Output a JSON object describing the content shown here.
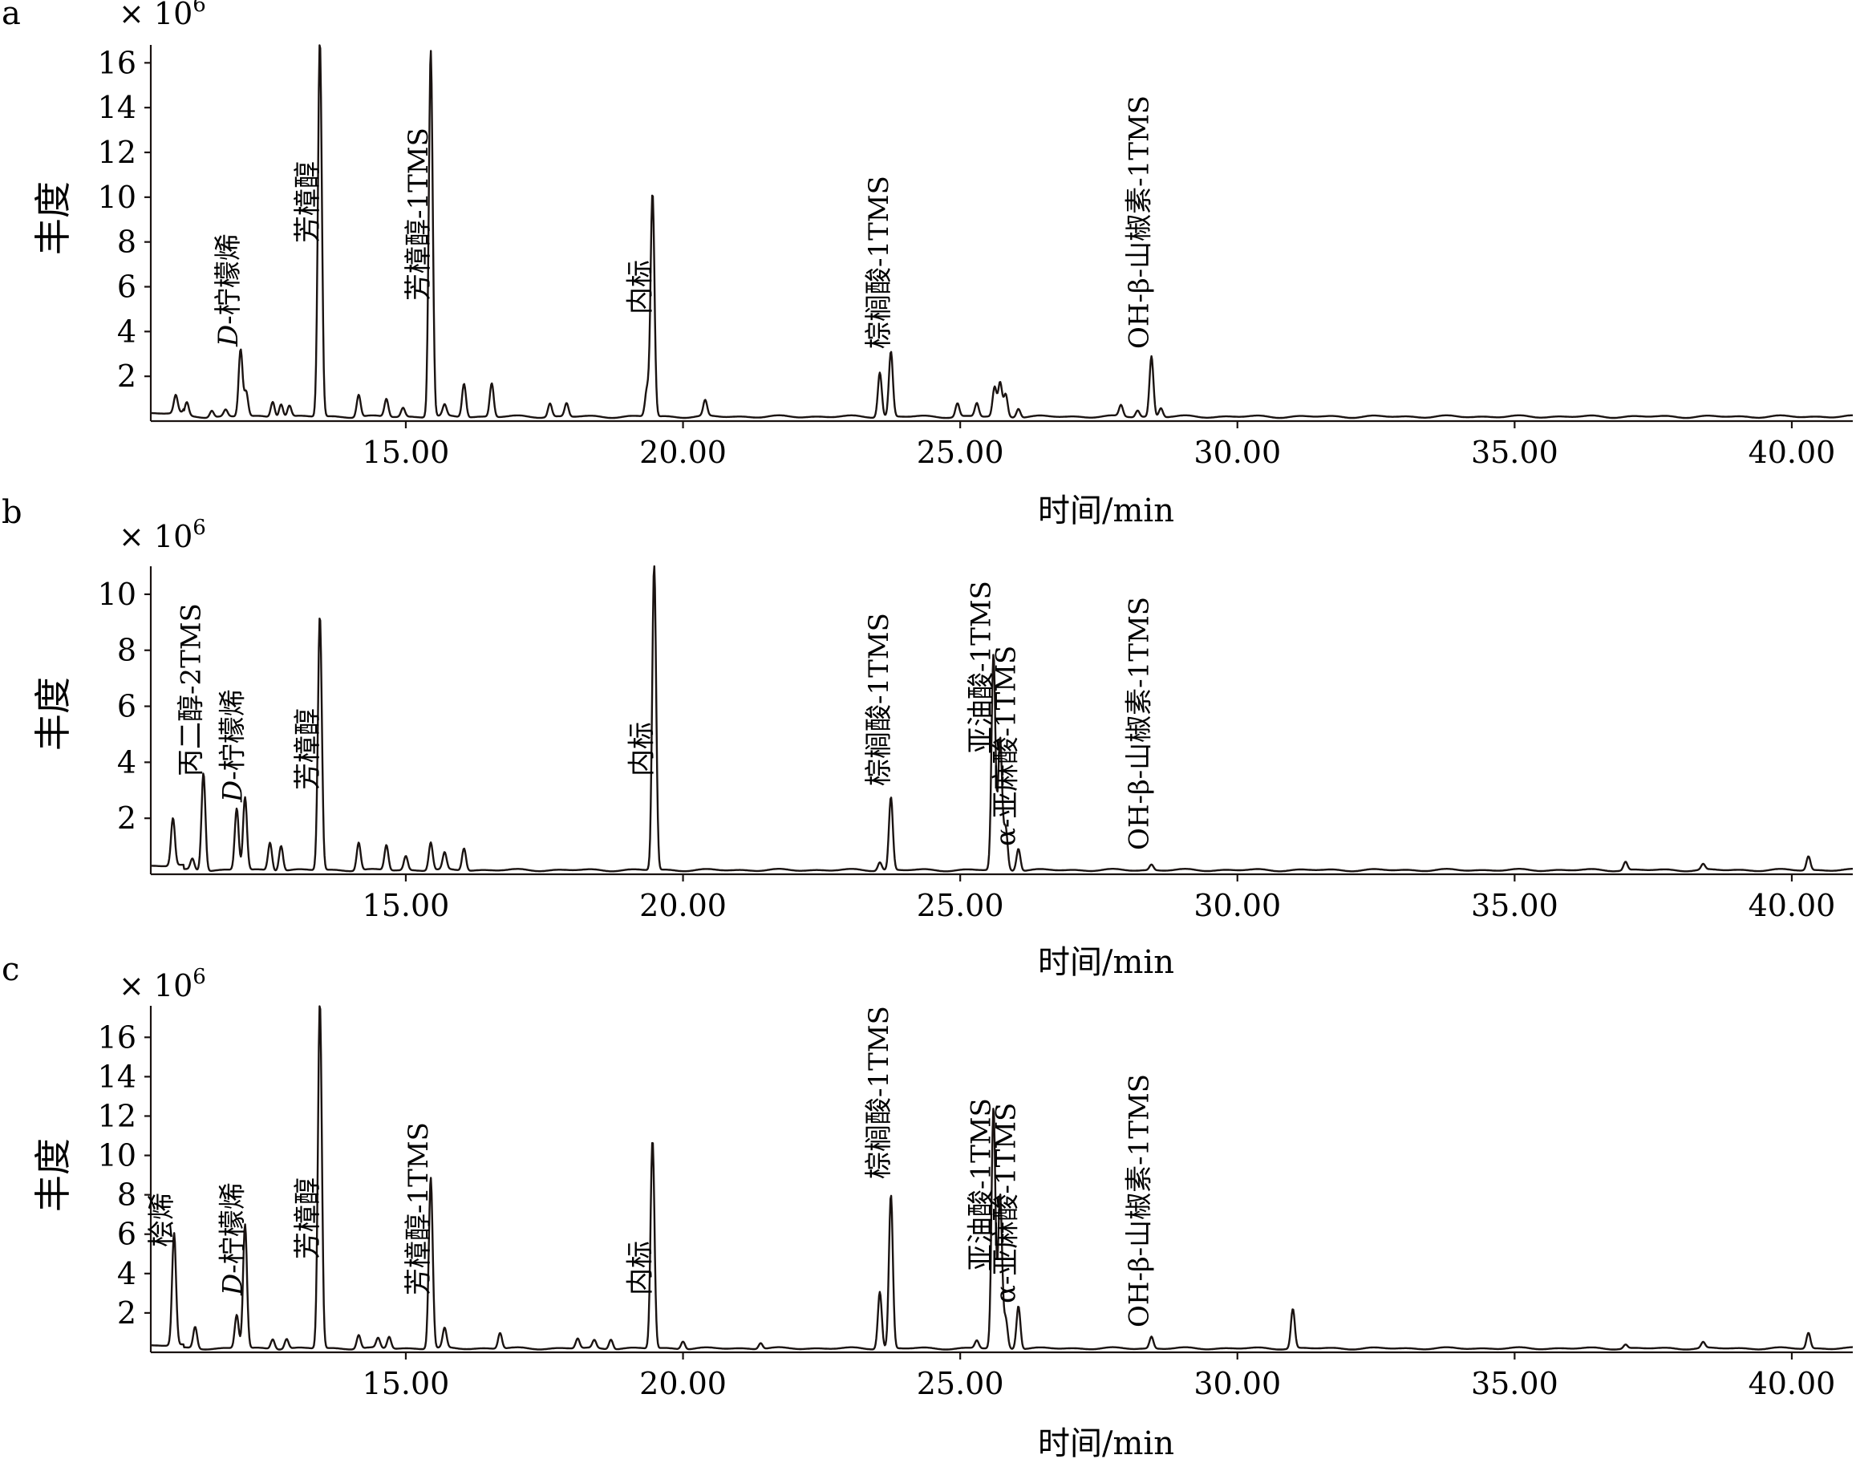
{
  "chart_data": [
    {
      "type": "line",
      "panel": "a",
      "scale_label": "× 10",
      "scale_exp": "6",
      "ylabel": "丰度",
      "xlabel": "时间/min",
      "xlim": [
        10.4,
        41.1
      ],
      "ylim": [
        0,
        16.8
      ],
      "x_ticks": [
        15,
        20,
        25,
        30,
        35,
        40
      ],
      "x_tick_labels": [
        "15.00",
        "20.00",
        "25.00",
        "30.00",
        "35.00",
        "40.00"
      ],
      "y_ticks": [
        2,
        4,
        6,
        8,
        10,
        12,
        14,
        16
      ],
      "y_tick_labels": [
        "2",
        "4",
        "6",
        "8",
        "10",
        "12",
        "14",
        "16"
      ],
      "baseline": 0.2,
      "peaks": [
        {
          "x": 10.85,
          "h": 0.8
        },
        {
          "x": 11.05,
          "h": 0.6
        },
        {
          "x": 11.5,
          "h": 0.3
        },
        {
          "x": 11.75,
          "h": 0.3
        },
        {
          "x": 12.02,
          "h": 3.0
        },
        {
          "x": 12.12,
          "h": 1.1
        },
        {
          "x": 12.6,
          "h": 0.7
        },
        {
          "x": 12.75,
          "h": 0.6
        },
        {
          "x": 12.9,
          "h": 0.5
        },
        {
          "x": 13.45,
          "h": 16.8
        },
        {
          "x": 14.15,
          "h": 1.0
        },
        {
          "x": 14.65,
          "h": 0.8
        },
        {
          "x": 14.95,
          "h": 0.4
        },
        {
          "x": 15.45,
          "h": 16.4
        },
        {
          "x": 15.7,
          "h": 0.5
        },
        {
          "x": 16.05,
          "h": 1.5
        },
        {
          "x": 16.55,
          "h": 1.5
        },
        {
          "x": 17.6,
          "h": 0.6
        },
        {
          "x": 17.9,
          "h": 0.6
        },
        {
          "x": 19.35,
          "h": 1.2
        },
        {
          "x": 19.45,
          "h": 10.0
        },
        {
          "x": 20.4,
          "h": 0.7
        },
        {
          "x": 23.55,
          "h": 2.0
        },
        {
          "x": 23.75,
          "h": 2.9
        },
        {
          "x": 24.95,
          "h": 0.6
        },
        {
          "x": 25.3,
          "h": 0.6
        },
        {
          "x": 25.62,
          "h": 1.3
        },
        {
          "x": 25.72,
          "h": 1.5
        },
        {
          "x": 25.82,
          "h": 1.0
        },
        {
          "x": 26.05,
          "h": 0.4
        },
        {
          "x": 27.9,
          "h": 0.5
        },
        {
          "x": 28.2,
          "h": 0.3
        },
        {
          "x": 28.45,
          "h": 2.7
        },
        {
          "x": 28.62,
          "h": 0.4
        }
      ],
      "annotations": [
        {
          "peak_x": 12.02,
          "label_prefix": "D",
          "label": "-柠檬烯"
        },
        {
          "peak_x": 13.45,
          "label_prefix": "",
          "label": "芳樟醇"
        },
        {
          "peak_x": 15.45,
          "label_prefix": "",
          "label": "芳樟醇-1TMS"
        },
        {
          "peak_x": 19.45,
          "label_prefix": "",
          "label": "内标"
        },
        {
          "peak_x": 23.75,
          "label_prefix": "",
          "label": "棕榈酸-1TMS"
        },
        {
          "peak_x": 28.45,
          "label_prefix": "",
          "label": "OH-β-山椒素-1TMS"
        }
      ]
    },
    {
      "type": "line",
      "panel": "b",
      "scale_label": "× 10",
      "scale_exp": "6",
      "ylabel": "丰度",
      "xlabel": "时间/min",
      "xlim": [
        10.4,
        41.1
      ],
      "ylim": [
        0,
        11.0
      ],
      "x_ticks": [
        15,
        20,
        25,
        30,
        35,
        40
      ],
      "x_tick_labels": [
        "15.00",
        "20.00",
        "25.00",
        "30.00",
        "35.00",
        "40.00"
      ],
      "y_ticks": [
        2,
        4,
        6,
        8,
        10
      ],
      "y_tick_labels": [
        "2",
        "4",
        "6",
        "8",
        "10"
      ],
      "baseline": 0.15,
      "peaks": [
        {
          "x": 10.8,
          "h": 1.7
        },
        {
          "x": 11.15,
          "h": 0.4
        },
        {
          "x": 11.35,
          "h": 3.5
        },
        {
          "x": 11.95,
          "h": 2.2
        },
        {
          "x": 12.1,
          "h": 2.6
        },
        {
          "x": 12.55,
          "h": 1.0
        },
        {
          "x": 12.75,
          "h": 0.9
        },
        {
          "x": 13.45,
          "h": 9.1
        },
        {
          "x": 14.15,
          "h": 1.0
        },
        {
          "x": 14.65,
          "h": 0.9
        },
        {
          "x": 15.0,
          "h": 0.5
        },
        {
          "x": 15.45,
          "h": 1.0
        },
        {
          "x": 15.7,
          "h": 0.6
        },
        {
          "x": 16.05,
          "h": 0.8
        },
        {
          "x": 19.48,
          "h": 11.0
        },
        {
          "x": 23.55,
          "h": 0.3
        },
        {
          "x": 23.75,
          "h": 2.6
        },
        {
          "x": 25.6,
          "h": 7.7
        },
        {
          "x": 25.72,
          "h": 4.7
        },
        {
          "x": 25.82,
          "h": 1.5
        },
        {
          "x": 26.05,
          "h": 0.8
        },
        {
          "x": 28.45,
          "h": 0.2
        },
        {
          "x": 37.0,
          "h": 0.3
        },
        {
          "x": 38.4,
          "h": 0.2
        },
        {
          "x": 40.3,
          "h": 0.5
        }
      ],
      "annotations": [
        {
          "peak_x": 11.35,
          "label_prefix": "",
          "label": "丙二醇-2TMS"
        },
        {
          "peak_x": 12.1,
          "label_prefix": "D",
          "label": "-柠檬烯"
        },
        {
          "peak_x": 13.45,
          "label_prefix": "",
          "label": "芳樟醇"
        },
        {
          "peak_x": 19.48,
          "label_prefix": "",
          "label": "内标"
        },
        {
          "peak_x": 23.75,
          "label_prefix": "",
          "label": "棕榈酸-1TMS"
        },
        {
          "peak_x": 25.6,
          "label_prefix": "",
          "label": "亚油酸-1TMS"
        },
        {
          "peak_x": 26.05,
          "label_prefix": "",
          "label": "α-亚麻酸-1TMS"
        },
        {
          "peak_x": 28.45,
          "label_prefix": "",
          "label": "OH-β-山椒素-1TMS"
        }
      ]
    },
    {
      "type": "line",
      "panel": "c",
      "scale_label": "× 10",
      "scale_exp": "6",
      "ylabel": "丰度",
      "xlabel": "时间/min",
      "xlim": [
        10.4,
        41.1
      ],
      "ylim": [
        0,
        17.6
      ],
      "x_ticks": [
        15,
        20,
        25,
        30,
        35,
        40
      ],
      "x_tick_labels": [
        "15.00",
        "20.00",
        "25.00",
        "30.00",
        "35.00",
        "40.00"
      ],
      "y_ticks": [
        2,
        4,
        6,
        8,
        10,
        12,
        14,
        16
      ],
      "y_tick_labels": [
        "2",
        "4",
        "6",
        "8",
        "10",
        "12",
        "14",
        "16"
      ],
      "baseline": 0.2,
      "peaks": [
        {
          "x": 10.82,
          "h": 5.7
        },
        {
          "x": 11.2,
          "h": 1.1
        },
        {
          "x": 11.95,
          "h": 1.7
        },
        {
          "x": 12.1,
          "h": 6.3
        },
        {
          "x": 12.6,
          "h": 0.5
        },
        {
          "x": 12.85,
          "h": 0.5
        },
        {
          "x": 13.45,
          "h": 17.6
        },
        {
          "x": 14.15,
          "h": 0.7
        },
        {
          "x": 14.5,
          "h": 0.5
        },
        {
          "x": 14.7,
          "h": 0.6
        },
        {
          "x": 15.45,
          "h": 8.7
        },
        {
          "x": 15.7,
          "h": 1.0
        },
        {
          "x": 16.7,
          "h": 0.8
        },
        {
          "x": 18.1,
          "h": 0.5
        },
        {
          "x": 18.4,
          "h": 0.4
        },
        {
          "x": 18.7,
          "h": 0.5
        },
        {
          "x": 19.45,
          "h": 10.6
        },
        {
          "x": 20.0,
          "h": 0.4
        },
        {
          "x": 21.4,
          "h": 0.3
        },
        {
          "x": 23.55,
          "h": 2.9
        },
        {
          "x": 23.75,
          "h": 7.8
        },
        {
          "x": 25.3,
          "h": 0.4
        },
        {
          "x": 25.6,
          "h": 12.2
        },
        {
          "x": 25.72,
          "h": 7.8
        },
        {
          "x": 25.82,
          "h": 1.5
        },
        {
          "x": 26.05,
          "h": 2.2
        },
        {
          "x": 28.45,
          "h": 0.6
        },
        {
          "x": 31.0,
          "h": 2.0
        },
        {
          "x": 37.0,
          "h": 0.2
        },
        {
          "x": 38.4,
          "h": 0.3
        },
        {
          "x": 40.3,
          "h": 0.8
        }
      ],
      "annotations": [
        {
          "peak_x": 10.82,
          "label_prefix": "",
          "label": "桧烯"
        },
        {
          "peak_x": 12.1,
          "label_prefix": "D",
          "label": "-柠檬烯"
        },
        {
          "peak_x": 13.45,
          "label_prefix": "",
          "label": "芳樟醇"
        },
        {
          "peak_x": 15.45,
          "label_prefix": "",
          "label": "芳樟醇-1TMS"
        },
        {
          "peak_x": 19.45,
          "label_prefix": "",
          "label": "内标"
        },
        {
          "peak_x": 23.75,
          "label_prefix": "",
          "label": "棕榈酸-1TMS"
        },
        {
          "peak_x": 25.6,
          "label_prefix": "",
          "label": "亚油酸-1TMS"
        },
        {
          "peak_x": 26.05,
          "label_prefix": "",
          "label": "α-亚麻酸-1TMS"
        },
        {
          "peak_x": 28.45,
          "label_prefix": "",
          "label": "OH-β-山椒素-1TMS"
        }
      ]
    }
  ]
}
